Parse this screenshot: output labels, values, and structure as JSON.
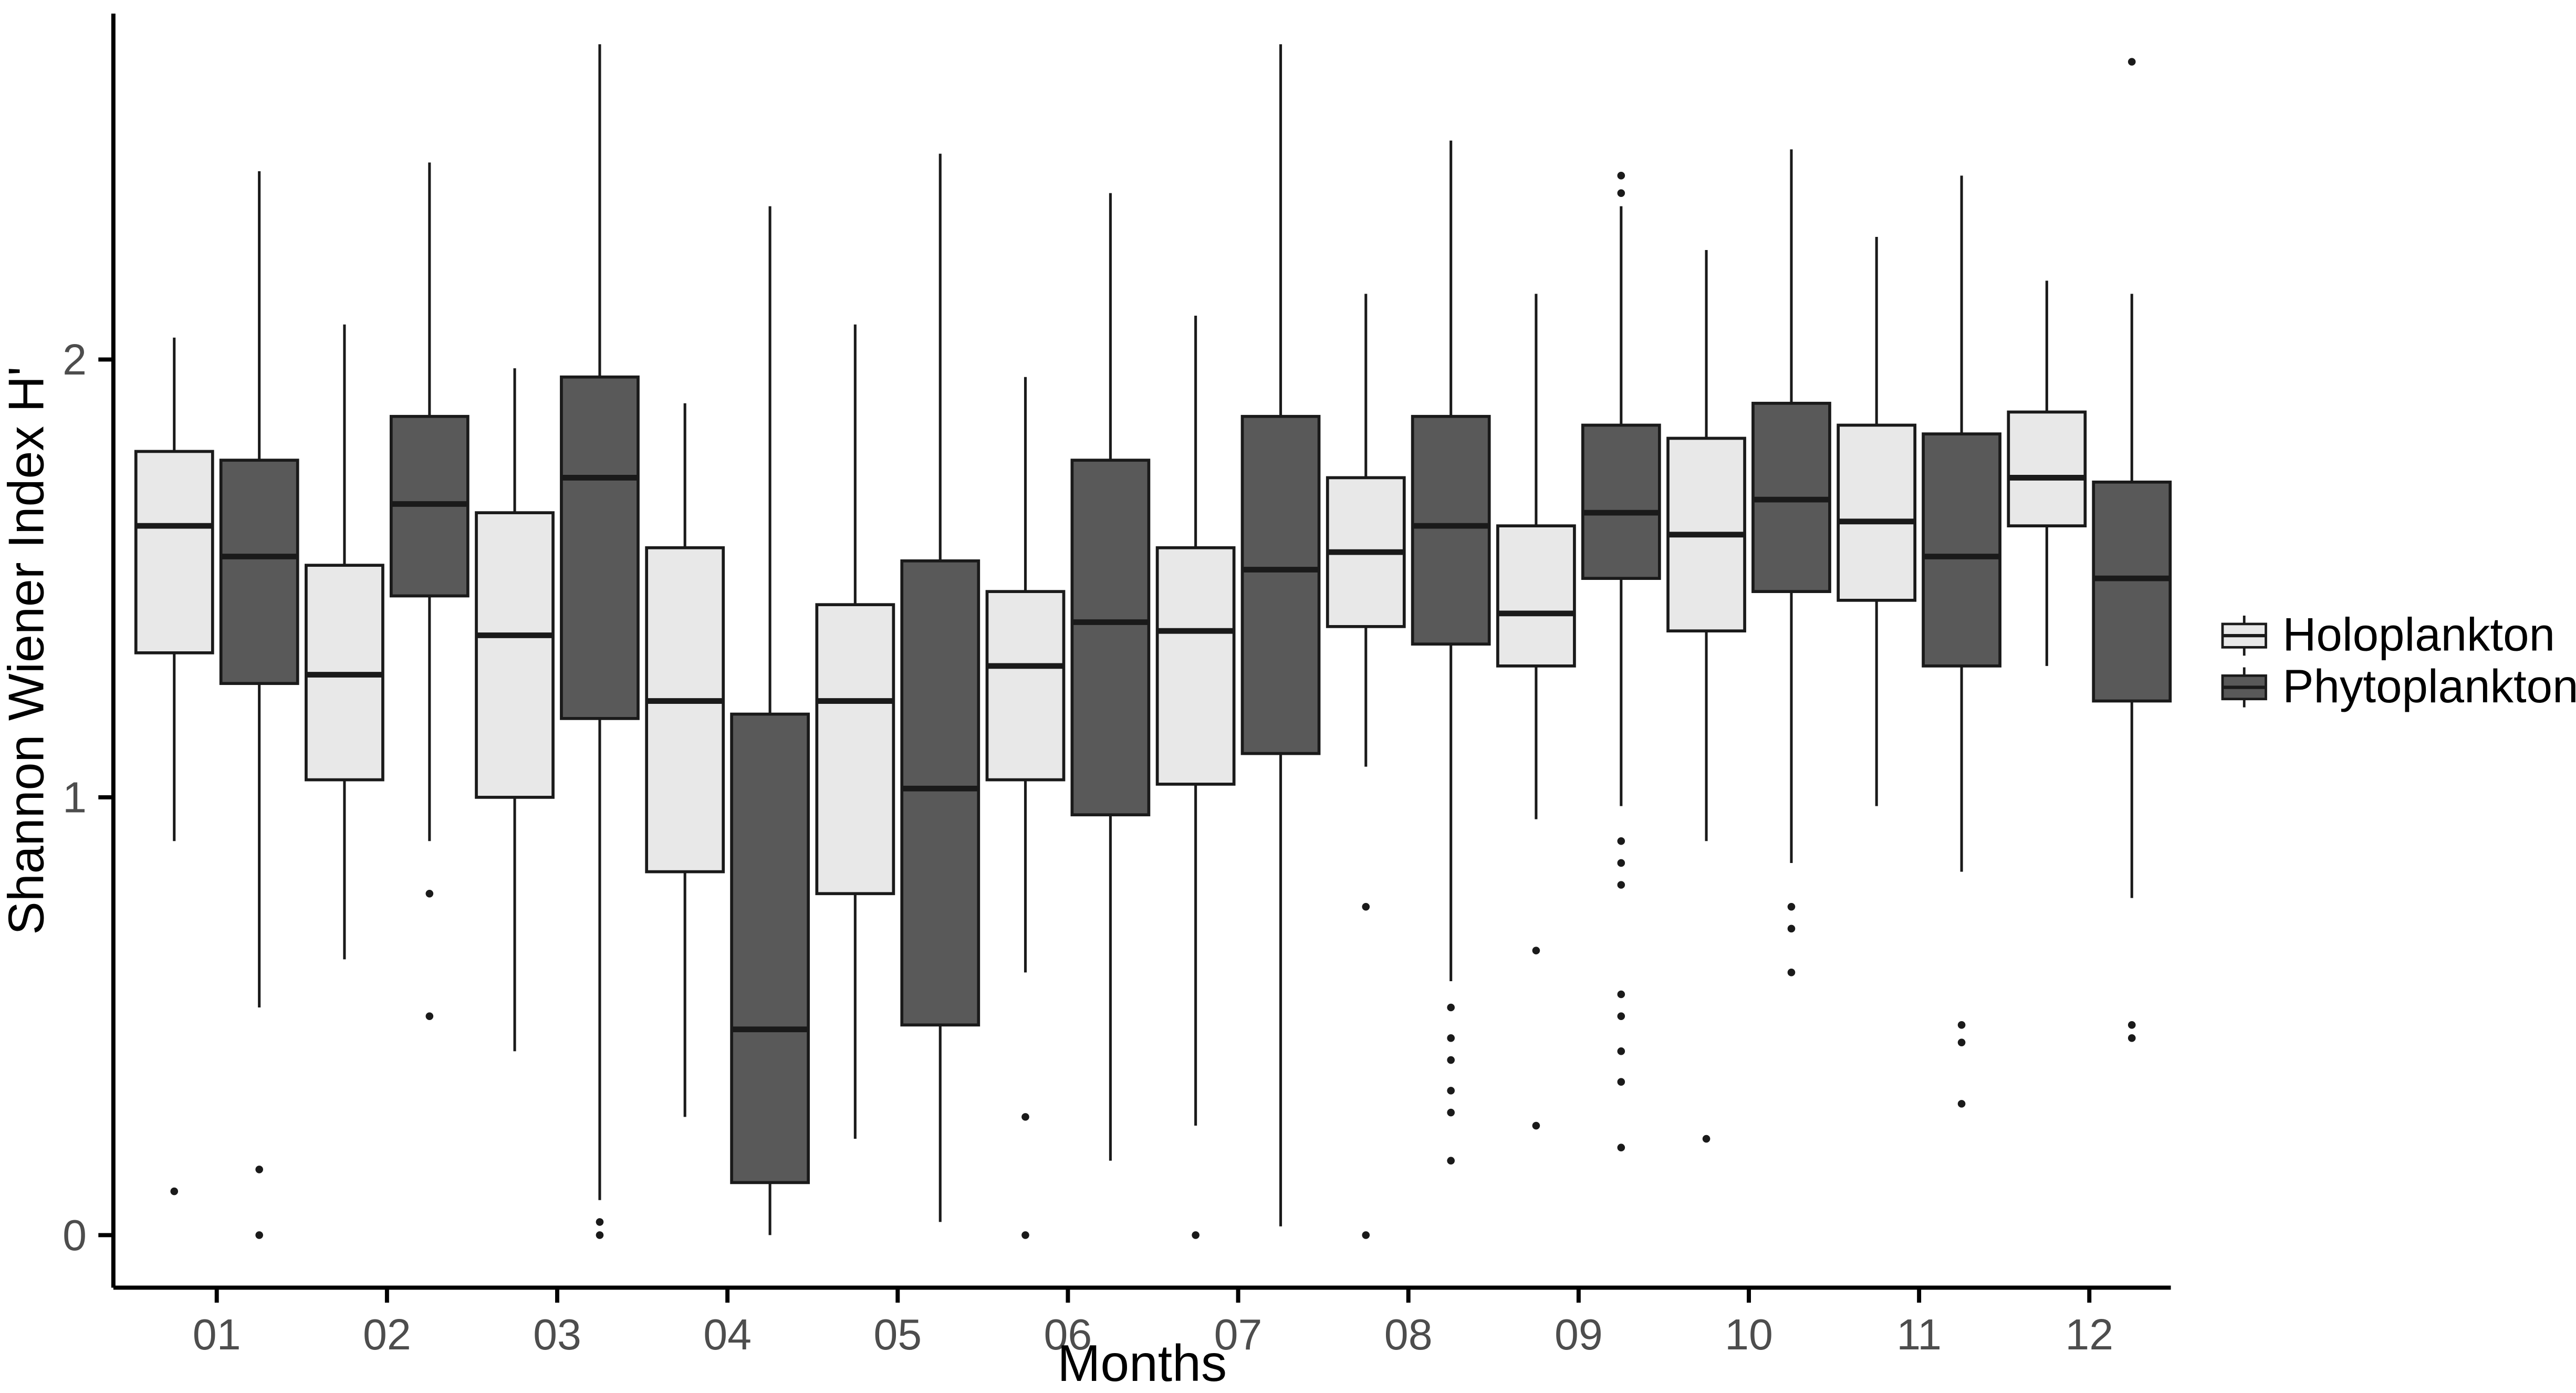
{
  "chart_data": {
    "type": "boxplot",
    "title": "",
    "xlabel": "Months",
    "ylabel": "Shannon Wiener Index H'",
    "categories": [
      "01",
      "02",
      "03",
      "04",
      "05",
      "06",
      "07",
      "08",
      "09",
      "10",
      "11",
      "12"
    ],
    "yticks": [
      "0",
      "1",
      "2"
    ],
    "ytick_values": [
      0,
      1,
      2
    ],
    "ylim": [
      -0.12,
      2.79
    ],
    "grid": false,
    "legend_position": "right",
    "axis_color": "#000000",
    "tick_label_color": "#4d4d4d",
    "box_stroke_color": "#1a1a1a",
    "series": [
      {
        "name": "Holoplankton",
        "fill": "#e8e8e8",
        "boxes": [
          {
            "whisker_low": 0.9,
            "q1": 1.33,
            "median": 1.62,
            "q3": 1.79,
            "whisker_high": 2.05,
            "outliers": [
              0.1
            ]
          },
          {
            "whisker_low": 0.63,
            "q1": 1.04,
            "median": 1.28,
            "q3": 1.53,
            "whisker_high": 2.08,
            "outliers": []
          },
          {
            "whisker_low": 0.42,
            "q1": 1.0,
            "median": 1.37,
            "q3": 1.65,
            "whisker_high": 1.98,
            "outliers": []
          },
          {
            "whisker_low": 0.27,
            "q1": 0.83,
            "median": 1.22,
            "q3": 1.57,
            "whisker_high": 1.9,
            "outliers": []
          },
          {
            "whisker_low": 0.22,
            "q1": 0.78,
            "median": 1.22,
            "q3": 1.44,
            "whisker_high": 2.08,
            "outliers": []
          },
          {
            "whisker_low": 0.6,
            "q1": 1.04,
            "median": 1.3,
            "q3": 1.47,
            "whisker_high": 1.96,
            "outliers": [
              0.27,
              0.0
            ]
          },
          {
            "whisker_low": 0.25,
            "q1": 1.03,
            "median": 1.38,
            "q3": 1.57,
            "whisker_high": 2.1,
            "outliers": [
              0.0
            ]
          },
          {
            "whisker_low": 1.07,
            "q1": 1.39,
            "median": 1.56,
            "q3": 1.73,
            "whisker_high": 2.15,
            "outliers": [
              0.75,
              0.0
            ]
          },
          {
            "whisker_low": 0.95,
            "q1": 1.3,
            "median": 1.42,
            "q3": 1.62,
            "whisker_high": 2.15,
            "outliers": [
              0.65,
              0.25
            ]
          },
          {
            "whisker_low": 0.9,
            "q1": 1.38,
            "median": 1.6,
            "q3": 1.82,
            "whisker_high": 2.25,
            "outliers": [
              0.22
            ]
          },
          {
            "whisker_low": 0.98,
            "q1": 1.45,
            "median": 1.63,
            "q3": 1.85,
            "whisker_high": 2.28,
            "outliers": []
          },
          {
            "whisker_low": 1.3,
            "q1": 1.62,
            "median": 1.73,
            "q3": 1.88,
            "whisker_high": 2.18,
            "outliers": []
          }
        ]
      },
      {
        "name": "Phytoplankton",
        "fill": "#595959",
        "boxes": [
          {
            "whisker_low": 0.52,
            "q1": 1.26,
            "median": 1.55,
            "q3": 1.77,
            "whisker_high": 2.43,
            "outliers": [
              0.15,
              0.0
            ]
          },
          {
            "whisker_low": 0.9,
            "q1": 1.46,
            "median": 1.67,
            "q3": 1.87,
            "whisker_high": 2.45,
            "outliers": [
              0.78,
              0.5
            ]
          },
          {
            "whisker_low": 0.08,
            "q1": 1.18,
            "median": 1.73,
            "q3": 1.96,
            "whisker_high": 2.72,
            "outliers": [
              0.03,
              0.0
            ]
          },
          {
            "whisker_low": 0.0,
            "q1": 0.12,
            "median": 0.47,
            "q3": 1.19,
            "whisker_high": 2.35,
            "outliers": []
          },
          {
            "whisker_low": 0.03,
            "q1": 0.48,
            "median": 1.02,
            "q3": 1.54,
            "whisker_high": 2.47,
            "outliers": []
          },
          {
            "whisker_low": 0.17,
            "q1": 0.96,
            "median": 1.4,
            "q3": 1.77,
            "whisker_high": 2.38,
            "outliers": []
          },
          {
            "whisker_low": 0.02,
            "q1": 1.1,
            "median": 1.52,
            "q3": 1.87,
            "whisker_high": 2.72,
            "outliers": []
          },
          {
            "whisker_low": 0.58,
            "q1": 1.35,
            "median": 1.62,
            "q3": 1.87,
            "whisker_high": 2.5,
            "outliers": [
              0.52,
              0.45,
              0.4,
              0.33,
              0.28,
              0.17
            ]
          },
          {
            "whisker_low": 0.98,
            "q1": 1.5,
            "median": 1.65,
            "q3": 1.85,
            "whisker_high": 2.35,
            "outliers": [
              2.42,
              2.38,
              0.9,
              0.85,
              0.8,
              0.55,
              0.5,
              0.42,
              0.35,
              0.2
            ]
          },
          {
            "whisker_low": 0.85,
            "q1": 1.47,
            "median": 1.68,
            "q3": 1.9,
            "whisker_high": 2.48,
            "outliers": [
              0.75,
              0.7,
              0.6
            ]
          },
          {
            "whisker_low": 0.83,
            "q1": 1.3,
            "median": 1.55,
            "q3": 1.83,
            "whisker_high": 2.42,
            "outliers": [
              0.48,
              0.44,
              0.3
            ]
          },
          {
            "whisker_low": 0.77,
            "q1": 1.22,
            "median": 1.5,
            "q3": 1.72,
            "whisker_high": 2.15,
            "outliers": [
              2.68,
              0.48,
              0.45
            ]
          }
        ]
      }
    ]
  }
}
